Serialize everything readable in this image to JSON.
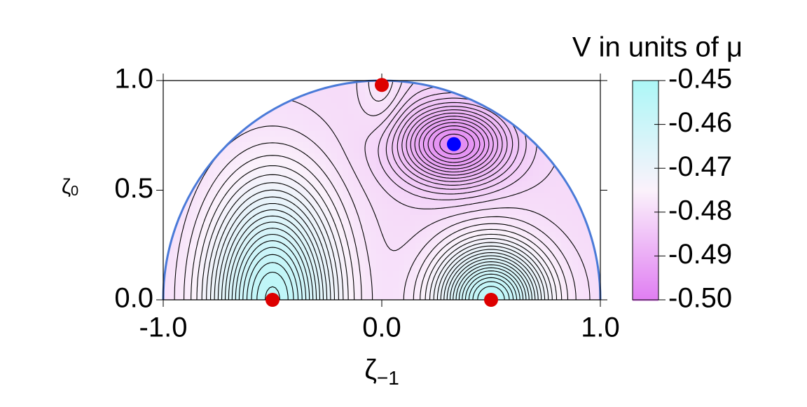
{
  "chart_data": {
    "type": "contour",
    "title": "V in units of μ",
    "xlabel": "ζ",
    "xlabel_subscript": "−1",
    "ylabel": "ζ",
    "ylabel_subscript": "0",
    "xlim": [
      -1.0,
      1.0
    ],
    "xticks": [
      {
        "value": -1.0,
        "label": "-1.0"
      },
      {
        "value": 0.0,
        "label": "0.0"
      },
      {
        "value": 1.0,
        "label": "1.0"
      }
    ],
    "ylim": [
      0.0,
      1.0
    ],
    "yticks": [
      {
        "value": 0.0,
        "label": "0.0"
      },
      {
        "value": 0.5,
        "label": "0.5"
      },
      {
        "value": 1.0,
        "label": "1.0"
      }
    ],
    "zlim": [
      -0.5,
      -0.45
    ],
    "zticks": [
      -0.45,
      -0.46,
      -0.47,
      -0.48,
      -0.49,
      {
        "value": -0.5,
        "label": "-0.50"
      }
    ],
    "colormap": [
      "#e07ef2",
      "#fbf2fb",
      "#adf7f7"
    ],
    "boundary_color": "#4a7ad8",
    "points": {
      "x": [
        -0.5,
        0.0,
        0.5,
        0.33
      ],
      "y": [
        0.0,
        0.98,
        0.0,
        0.71
      ],
      "colors": [
        "#dd0000",
        "#dd0000",
        "#dd0000",
        "#0000ff"
      ]
    }
  }
}
